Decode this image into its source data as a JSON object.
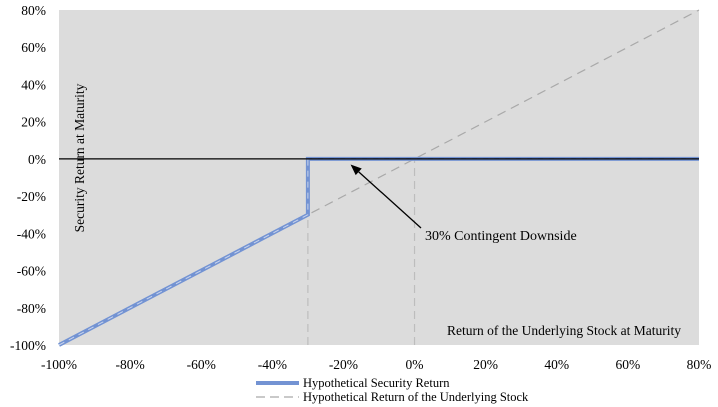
{
  "chart_data": {
    "type": "line",
    "xlabel": "Return of the Underlying Stock at Maturity",
    "ylabel": "Security Return at Maturity",
    "xlim": [
      -100,
      80
    ],
    "ylim": [
      -100,
      80
    ],
    "x_ticks": [
      -100,
      -80,
      -60,
      -40,
      -20,
      0,
      20,
      40,
      60,
      80
    ],
    "y_ticks": [
      -100,
      -80,
      -60,
      -40,
      -20,
      0,
      20,
      40,
      60,
      80
    ],
    "x_tick_labels": [
      "-100%",
      "-80%",
      "-60%",
      "-40%",
      "-20%",
      "0%",
      "20%",
      "40%",
      "60%",
      "80%"
    ],
    "y_tick_labels": [
      "-100%",
      "-80%",
      "-60%",
      "-40%",
      "-20%",
      "0%",
      "20%",
      "40%",
      "60%",
      "80%"
    ],
    "grid": false,
    "legend_position": "bottom",
    "colors": {
      "plot_background": "#dcdcdc",
      "security_line": "#7393d3",
      "stock_line": "#a9a9a9",
      "zero_line": "#000000"
    },
    "series": [
      {
        "name": "Hypothetical Security Return",
        "style": "solid",
        "x": [
          -100,
          -30,
          -30,
          80
        ],
        "y": [
          -100,
          -30,
          0,
          0
        ]
      },
      {
        "name": "Hypothetical Return of the Underlying Stock",
        "style": "dashed",
        "x": [
          -100,
          80
        ],
        "y": [
          -100,
          80
        ]
      }
    ],
    "reference_lines": [
      {
        "axis": "x",
        "value": -30
      },
      {
        "axis": "x",
        "value": 0
      }
    ],
    "annotations": [
      {
        "text": "30% Contingent Downside",
        "arrow_to": {
          "x": -18,
          "y": -3
        }
      }
    ]
  }
}
